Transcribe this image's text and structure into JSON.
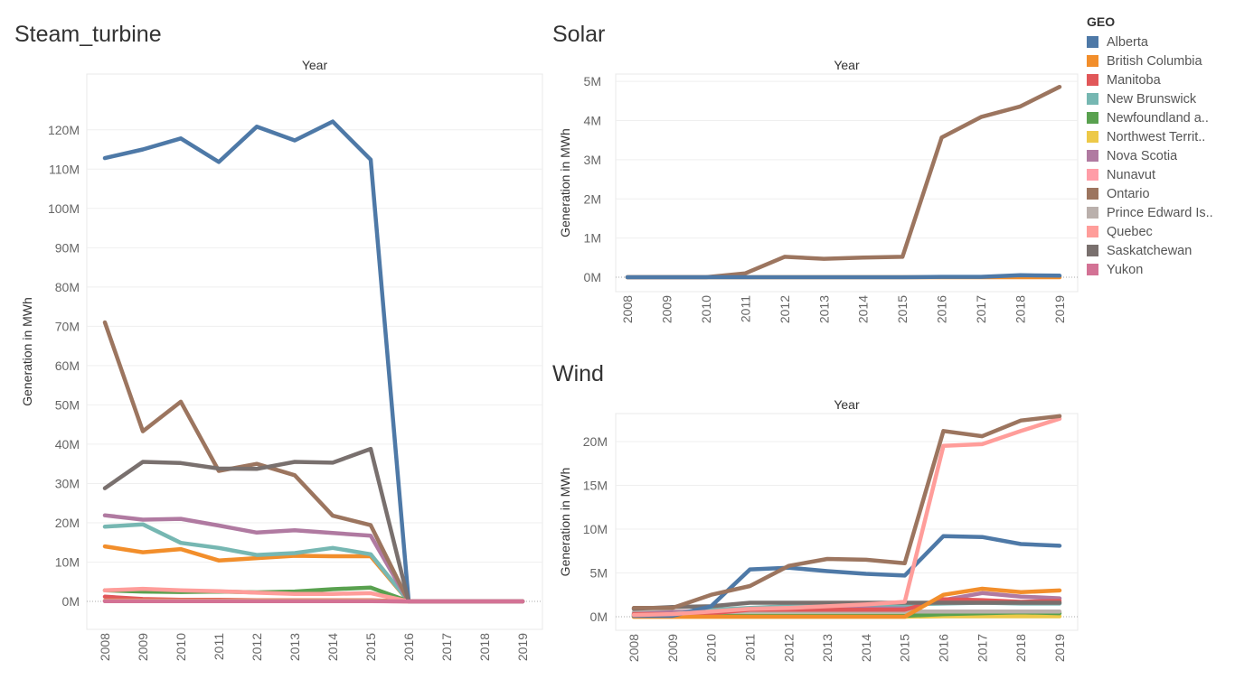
{
  "chart_data": [
    {
      "type": "line",
      "title": "Steam_turbine",
      "xlabel": "Year",
      "ylabel": "Generation in MWh",
      "x": [
        "2008",
        "2009",
        "2010",
        "2011",
        "2012",
        "2013",
        "2014",
        "2015",
        "2016",
        "2017",
        "2018",
        "2019"
      ],
      "yticks": [
        0,
        10,
        20,
        30,
        40,
        50,
        60,
        70,
        80,
        90,
        100,
        110,
        120
      ],
      "ytick_labels": [
        "0M",
        "10M",
        "20M",
        "30M",
        "40M",
        "50M",
        "60M",
        "70M",
        "80M",
        "90M",
        "100M",
        "110M",
        "120M"
      ],
      "ylim": [
        0,
        125
      ],
      "unit": "M",
      "grid": true,
      "series": [
        {
          "name": "Alberta",
          "values": [
            112.8,
            115,
            117.8,
            111.8,
            120.8,
            117.3,
            122.1,
            112.4,
            0,
            0,
            0,
            0
          ]
        },
        {
          "name": "British Columbia",
          "values": [
            14,
            12.5,
            13.3,
            10.4,
            11,
            11.6,
            11.5,
            11.5,
            0,
            0,
            0,
            0
          ]
        },
        {
          "name": "Manitoba",
          "values": [
            1.2,
            0.6,
            0.4,
            0.4,
            0.3,
            0.3,
            0.3,
            0.3,
            0,
            0,
            0,
            0
          ]
        },
        {
          "name": "New Brunswick",
          "values": [
            19,
            19.6,
            14.9,
            13.6,
            11.8,
            12.3,
            13.6,
            12,
            0,
            0,
            0,
            0
          ]
        },
        {
          "name": "Newfoundland and Labrador",
          "values": [
            2.8,
            2.5,
            2.4,
            2.5,
            2.3,
            2.5,
            3.1,
            3.5,
            0,
            0,
            0,
            0
          ]
        },
        {
          "name": "Northwest Territories",
          "values": [
            0.2,
            0.2,
            0.2,
            0.2,
            0.2,
            0.2,
            0.2,
            0.2,
            0,
            0,
            0,
            0
          ]
        },
        {
          "name": "Nova Scotia",
          "values": [
            21.9,
            20.8,
            21,
            19.3,
            17.5,
            18.1,
            17.4,
            16.7,
            0,
            0,
            0,
            0
          ]
        },
        {
          "name": "Nunavut",
          "values": [
            0.1,
            0.1,
            0.1,
            0.1,
            0.1,
            0.1,
            0.1,
            0.1,
            0,
            0,
            0,
            0
          ]
        },
        {
          "name": "Ontario",
          "values": [
            71,
            43.3,
            50.8,
            33.2,
            35,
            32.1,
            21.8,
            19.4,
            0,
            0,
            0,
            0
          ]
        },
        {
          "name": "Prince Edward Island",
          "values": [
            0.1,
            0.1,
            0.1,
            0.1,
            0.1,
            0.1,
            0.1,
            0.1,
            0,
            0,
            0,
            0
          ]
        },
        {
          "name": "Quebec",
          "values": [
            2.8,
            3.2,
            2.8,
            2.6,
            2.2,
            1.9,
            1.9,
            2.1,
            0,
            0,
            0,
            0
          ]
        },
        {
          "name": "Saskatchewan",
          "values": [
            28.8,
            35.5,
            35.2,
            33.8,
            33.7,
            35.5,
            35.3,
            38.8,
            0,
            0,
            0,
            0
          ]
        },
        {
          "name": "Yukon",
          "values": [
            0.05,
            0.05,
            0.05,
            0.05,
            0.05,
            0.05,
            0.05,
            0.05,
            0,
            0,
            0,
            0
          ]
        }
      ]
    },
    {
      "type": "line",
      "title": "Solar",
      "xlabel": "Year",
      "ylabel": "Generation in MWh",
      "x": [
        "2008",
        "2009",
        "2010",
        "2011",
        "2012",
        "2013",
        "2014",
        "2015",
        "2016",
        "2017",
        "2018",
        "2019"
      ],
      "yticks": [
        0,
        1,
        2,
        3,
        4,
        5
      ],
      "ytick_labels": [
        "0M",
        "1M",
        "2M",
        "3M",
        "4M",
        "5M"
      ],
      "ylim": [
        0,
        5.05
      ],
      "unit": "M",
      "grid": true,
      "series": [
        {
          "name": "British Columbia",
          "values": [
            0,
            0,
            0,
            0,
            0,
            0,
            0,
            0,
            0,
            0,
            0,
            0
          ]
        },
        {
          "name": "Ontario",
          "values": [
            0,
            0,
            0,
            0.1,
            0.52,
            0.47,
            0.5,
            0.52,
            3.57,
            4.09,
            4.36,
            4.86
          ]
        },
        {
          "name": "Alberta",
          "values": [
            0,
            0,
            0,
            0,
            0,
            0,
            0,
            0,
            0.01,
            0.01,
            0.05,
            0.04
          ]
        }
      ]
    },
    {
      "type": "line",
      "title": "Wind",
      "xlabel": "Year",
      "ylabel": "Generation in MWh",
      "x": [
        "2008",
        "2009",
        "2010",
        "2011",
        "2012",
        "2013",
        "2014",
        "2015",
        "2016",
        "2017",
        "2018",
        "2019"
      ],
      "yticks": [
        0,
        5,
        10,
        15,
        20
      ],
      "ytick_labels": [
        "0M",
        "5M",
        "10M",
        "15M",
        "20M"
      ],
      "ylim": [
        0,
        23.5
      ],
      "unit": "M",
      "grid": true,
      "series": [
        {
          "name": "Northwest Territories",
          "values": [
            0,
            0,
            0,
            0,
            0,
            0,
            0,
            0,
            0.05,
            0.05,
            0.05,
            0.05
          ]
        },
        {
          "name": "Newfoundland and Labrador",
          "values": [
            0.1,
            0.1,
            0.1,
            0.1,
            0.1,
            0.1,
            0.1,
            0.1,
            0.3,
            0.4,
            0.5,
            0.4
          ]
        },
        {
          "name": "Prince Edward Island",
          "values": [
            0.5,
            0.6,
            0.5,
            0.6,
            0.6,
            0.6,
            0.6,
            0.6,
            0.6,
            0.6,
            0.6,
            0.6
          ]
        },
        {
          "name": "Nova Scotia",
          "values": [
            0.3,
            0.5,
            0.7,
            0.8,
            0.9,
            1,
            1,
            1,
            1.9,
            2.7,
            2.3,
            2.1
          ]
        },
        {
          "name": "New Brunswick",
          "values": [
            0.2,
            0.3,
            0.8,
            1,
            1.2,
            1.3,
            1.4,
            1.4,
            1.5,
            1.6,
            1.5,
            1.5
          ]
        },
        {
          "name": "Manitoba",
          "values": [
            0.3,
            0.3,
            0.4,
            0.8,
            0.8,
            0.8,
            0.8,
            0.8,
            2,
            1.9,
            1.7,
            1.8
          ]
        },
        {
          "name": "Saskatchewan",
          "values": [
            0.9,
            1.1,
            1.2,
            1.6,
            1.6,
            1.6,
            1.6,
            1.6,
            1.6,
            1.6,
            1.6,
            1.6
          ]
        },
        {
          "name": "British Columbia",
          "values": [
            0,
            0,
            0,
            0,
            0,
            0,
            0,
            0,
            2.5,
            3.2,
            2.8,
            3
          ]
        },
        {
          "name": "Alberta",
          "values": [
            0.1,
            0.1,
            1.2,
            5.4,
            5.6,
            5.2,
            4.9,
            4.7,
            9.2,
            9.1,
            8.3,
            8.1
          ]
        },
        {
          "name": "Quebec",
          "values": [
            0.2,
            0.3,
            0.6,
            0.9,
            1,
            1.2,
            1.4,
            1.7,
            19.5,
            19.7,
            21.2,
            22.6
          ]
        },
        {
          "name": "Ontario",
          "values": [
            1,
            1,
            2.5,
            3.5,
            5.8,
            6.6,
            6.5,
            6.1,
            21.2,
            20.6,
            22.4,
            22.9
          ]
        }
      ]
    }
  ],
  "legend": {
    "title": "GEO",
    "items": [
      {
        "label": "Alberta",
        "color": "#4e79a7"
      },
      {
        "label": "British Columbia",
        "color": "#f28e2b"
      },
      {
        "label": "Manitoba",
        "color": "#e15759"
      },
      {
        "label": "New Brunswick",
        "color": "#76b7b2"
      },
      {
        "label": "Newfoundland a..",
        "color": "#59a14f"
      },
      {
        "label": "Northwest Territ..",
        "color": "#edc948"
      },
      {
        "label": "Nova Scotia",
        "color": "#b07aa1"
      },
      {
        "label": "Nunavut",
        "color": "#ff9da7"
      },
      {
        "label": "Ontario",
        "color": "#9c755f"
      },
      {
        "label": "Prince Edward Is..",
        "color": "#bab0ac"
      },
      {
        "label": "Quebec",
        "color": "#ff9d9a"
      },
      {
        "label": "Saskatchewan",
        "color": "#79706e"
      },
      {
        "label": "Yukon",
        "color": "#d37295"
      }
    ]
  },
  "colors": {
    "Alberta": "#4e79a7",
    "British Columbia": "#f28e2b",
    "Manitoba": "#e15759",
    "New Brunswick": "#76b7b2",
    "Newfoundland and Labrador": "#59a14f",
    "Northwest Territories": "#edc948",
    "Nova Scotia": "#b07aa1",
    "Nunavut": "#ff9da7",
    "Ontario": "#9c755f",
    "Prince Edward Island": "#bab0ac",
    "Quebec": "#ff9d9a",
    "Saskatchewan": "#79706e",
    "Yukon": "#d37295"
  }
}
